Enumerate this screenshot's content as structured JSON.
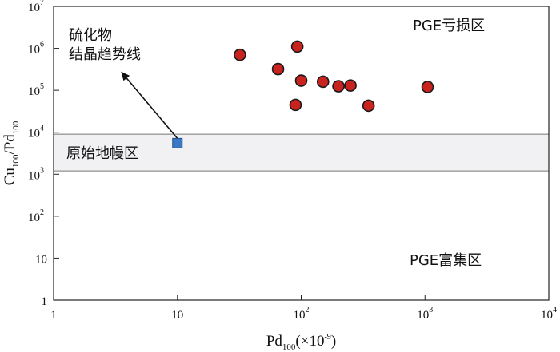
{
  "chart_data": {
    "type": "scatter",
    "x_scale": "log",
    "y_scale": "log",
    "xlim": [
      1,
      10000
    ],
    "ylim": [
      1,
      10000000
    ],
    "grid": false,
    "xlabel": {
      "base": "Pd",
      "sub": "100",
      "unit": "(×10",
      "unit_sup": "-9",
      "unit_end": ")"
    },
    "ylabel": {
      "base": "Cu",
      "sub1": "100",
      "mid": "/Pd",
      "sub2": "100"
    },
    "x_ticks": [
      {
        "value": 1,
        "base": "1",
        "sup": ""
      },
      {
        "value": 10,
        "base": "10",
        "sup": ""
      },
      {
        "value": 100,
        "base": "10",
        "sup": "2"
      },
      {
        "value": 1000,
        "base": "10",
        "sup": "3"
      },
      {
        "value": 10000,
        "base": "10",
        "sup": "4"
      }
    ],
    "y_ticks": [
      {
        "value": 1,
        "base": "1",
        "sup": ""
      },
      {
        "value": 10,
        "base": "10",
        "sup": ""
      },
      {
        "value": 100,
        "base": "10",
        "sup": "2"
      },
      {
        "value": 1000,
        "base": "10",
        "sup": "3"
      },
      {
        "value": 10000,
        "base": "10",
        "sup": "4"
      },
      {
        "value": 100000,
        "base": "10",
        "sup": "5"
      },
      {
        "value": 1000000,
        "base": "10",
        "sup": "6"
      },
      {
        "value": 10000000,
        "base": "10",
        "sup": "7"
      }
    ],
    "band": {
      "y_min": 1200,
      "y_max": 9000,
      "label": "原始地幔区",
      "color": "#f1f1f3"
    },
    "series": [
      {
        "marker": "circle",
        "color": "#c8231f",
        "points": [
          {
            "x": 32,
            "y": 700000
          },
          {
            "x": 65,
            "y": 320000
          },
          {
            "x": 93,
            "y": 1100000
          },
          {
            "x": 100,
            "y": 170000
          },
          {
            "x": 90,
            "y": 45000
          },
          {
            "x": 150,
            "y": 160000
          },
          {
            "x": 200,
            "y": 125000
          },
          {
            "x": 250,
            "y": 130000
          },
          {
            "x": 350,
            "y": 43000
          },
          {
            "x": 1050,
            "y": 120000
          }
        ]
      },
      {
        "marker": "square",
        "color": "#3b78c3",
        "points": [
          {
            "x": 10,
            "y": 5500
          }
        ]
      }
    ],
    "annotations": {
      "trend_line1": "硫化物",
      "trend_line2": "结晶趋势线",
      "depleted": "PGE亏损区",
      "enriched": "PGE富集区",
      "arrow_from": {
        "x": 10,
        "y": 5500
      },
      "arrow_to": {
        "x": 3.5,
        "y": 280000
      }
    }
  }
}
